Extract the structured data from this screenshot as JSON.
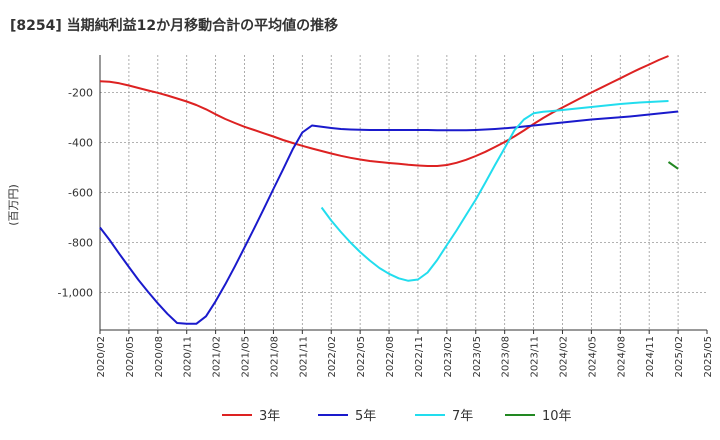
{
  "chart_data": {
    "type": "line",
    "title": "[8254]  当期純利益12か月移動合計の平均値の推移",
    "ylabel": "(百万円)",
    "xlabel": "",
    "ylim": [
      -1150,
      -50
    ],
    "yticks": [
      -200,
      -400,
      -600,
      -800,
      -1000
    ],
    "ytick_labels": [
      "-200",
      "-400",
      "-600",
      "-800",
      "-1,000"
    ],
    "xlim": [
      "2020-02",
      "2025-05"
    ],
    "x_tick_labels": [
      "2020/02",
      "2020/05",
      "2020/08",
      "2020/11",
      "2021/02",
      "2021/05",
      "2021/08",
      "2021/11",
      "2022/02",
      "2022/05",
      "2022/08",
      "2022/11",
      "2023/02",
      "2023/05",
      "2023/08",
      "2023/11",
      "2024/02",
      "2024/05",
      "2024/08",
      "2024/11",
      "2025/02",
      "2025/05"
    ],
    "grid": true,
    "legend_position": "bottom",
    "series": [
      {
        "name": "3年",
        "color": "#dd2222",
        "points": [
          [
            "2020-02",
            -155
          ],
          [
            "2020-03",
            -157
          ],
          [
            "2020-04",
            -163
          ],
          [
            "2020-05",
            -172
          ],
          [
            "2020-06",
            -182
          ],
          [
            "2020-07",
            -192
          ],
          [
            "2020-08",
            -201
          ],
          [
            "2020-09",
            -212
          ],
          [
            "2020-10",
            -224
          ],
          [
            "2020-11",
            -236
          ],
          [
            "2020-12",
            -250
          ],
          [
            "2021-01",
            -267
          ],
          [
            "2021-02",
            -287
          ],
          [
            "2021-03",
            -306
          ],
          [
            "2021-04",
            -322
          ],
          [
            "2021-05",
            -337
          ],
          [
            "2021-06",
            -350
          ],
          [
            "2021-07",
            -363
          ],
          [
            "2021-08",
            -376
          ],
          [
            "2021-09",
            -390
          ],
          [
            "2021-10",
            -402
          ],
          [
            "2021-11",
            -413
          ],
          [
            "2021-12",
            -424
          ],
          [
            "2022-01",
            -434
          ],
          [
            "2022-02",
            -444
          ],
          [
            "2022-03",
            -453
          ],
          [
            "2022-04",
            -461
          ],
          [
            "2022-05",
            -468
          ],
          [
            "2022-06",
            -474
          ],
          [
            "2022-07",
            -478
          ],
          [
            "2022-08",
            -482
          ],
          [
            "2022-09",
            -485
          ],
          [
            "2022-10",
            -489
          ],
          [
            "2022-11",
            -492
          ],
          [
            "2022-12",
            -494
          ],
          [
            "2023-01",
            -494
          ],
          [
            "2023-02",
            -490
          ],
          [
            "2023-03",
            -481
          ],
          [
            "2023-04",
            -469
          ],
          [
            "2023-05",
            -454
          ],
          [
            "2023-06",
            -437
          ],
          [
            "2023-07",
            -418
          ],
          [
            "2023-08",
            -398
          ],
          [
            "2023-09",
            -376
          ],
          [
            "2023-10",
            -352
          ],
          [
            "2023-11",
            -326
          ],
          [
            "2023-12",
            -302
          ],
          [
            "2024-01",
            -280
          ],
          [
            "2024-02",
            -260
          ],
          [
            "2024-03",
            -240
          ],
          [
            "2024-04",
            -220
          ],
          [
            "2024-05",
            -200
          ],
          [
            "2024-06",
            -181
          ],
          [
            "2024-07",
            -162
          ],
          [
            "2024-08",
            -143
          ],
          [
            "2024-09",
            -124
          ],
          [
            "2024-10",
            -105
          ],
          [
            "2024-11",
            -88
          ],
          [
            "2024-12",
            -70
          ],
          [
            "2025-01",
            -54
          ]
        ]
      },
      {
        "name": "5年",
        "color": "#1a1acc",
        "points": [
          [
            "2020-02",
            -740
          ],
          [
            "2020-03",
            -790
          ],
          [
            "2020-04",
            -845
          ],
          [
            "2020-05",
            -898
          ],
          [
            "2020-06",
            -950
          ],
          [
            "2020-07",
            -998
          ],
          [
            "2020-08",
            -1043
          ],
          [
            "2020-09",
            -1085
          ],
          [
            "2020-10",
            -1122
          ],
          [
            "2020-11",
            -1125
          ],
          [
            "2020-12",
            -1125
          ],
          [
            "2021-01",
            -1095
          ],
          [
            "2021-02",
            -1035
          ],
          [
            "2021-03",
            -967
          ],
          [
            "2021-04",
            -895
          ],
          [
            "2021-05",
            -820
          ],
          [
            "2021-06",
            -743
          ],
          [
            "2021-07",
            -665
          ],
          [
            "2021-08",
            -586
          ],
          [
            "2021-09",
            -507
          ],
          [
            "2021-10",
            -427
          ],
          [
            "2021-11",
            -360
          ],
          [
            "2021-12",
            -332
          ],
          [
            "2022-01",
            -337
          ],
          [
            "2022-02",
            -342
          ],
          [
            "2022-03",
            -346
          ],
          [
            "2022-04",
            -348
          ],
          [
            "2022-05",
            -349
          ],
          [
            "2022-06",
            -350
          ],
          [
            "2022-07",
            -350
          ],
          [
            "2022-08",
            -350
          ],
          [
            "2022-09",
            -350
          ],
          [
            "2022-10",
            -350
          ],
          [
            "2022-11",
            -350
          ],
          [
            "2022-12",
            -350
          ],
          [
            "2023-01",
            -351
          ],
          [
            "2023-02",
            -351
          ],
          [
            "2023-03",
            -351
          ],
          [
            "2023-04",
            -351
          ],
          [
            "2023-05",
            -350
          ],
          [
            "2023-06",
            -348
          ],
          [
            "2023-07",
            -346
          ],
          [
            "2023-08",
            -343
          ],
          [
            "2023-09",
            -340
          ],
          [
            "2023-10",
            -336
          ],
          [
            "2023-11",
            -332
          ],
          [
            "2023-12",
            -328
          ],
          [
            "2024-01",
            -324
          ],
          [
            "2024-02",
            -320
          ],
          [
            "2024-03",
            -316
          ],
          [
            "2024-04",
            -312
          ],
          [
            "2024-05",
            -308
          ],
          [
            "2024-06",
            -305
          ],
          [
            "2024-07",
            -302
          ],
          [
            "2024-08",
            -299
          ],
          [
            "2024-09",
            -296
          ],
          [
            "2024-10",
            -292
          ],
          [
            "2024-11",
            -288
          ],
          [
            "2024-12",
            -284
          ],
          [
            "2025-01",
            -280
          ],
          [
            "2025-02",
            -276
          ]
        ]
      },
      {
        "name": "7年",
        "color": "#22ddee",
        "points": [
          [
            "2022-01",
            -660
          ],
          [
            "2022-02",
            -712
          ],
          [
            "2022-03",
            -758
          ],
          [
            "2022-04",
            -800
          ],
          [
            "2022-05",
            -838
          ],
          [
            "2022-06",
            -872
          ],
          [
            "2022-07",
            -902
          ],
          [
            "2022-08",
            -925
          ],
          [
            "2022-09",
            -943
          ],
          [
            "2022-10",
            -953
          ],
          [
            "2022-11",
            -948
          ],
          [
            "2022-12",
            -920
          ],
          [
            "2023-01",
            -870
          ],
          [
            "2023-02",
            -810
          ],
          [
            "2023-03",
            -752
          ],
          [
            "2023-04",
            -690
          ],
          [
            "2023-05",
            -628
          ],
          [
            "2023-06",
            -560
          ],
          [
            "2023-07",
            -490
          ],
          [
            "2023-08",
            -422
          ],
          [
            "2023-09",
            -352
          ],
          [
            "2023-10",
            -308
          ],
          [
            "2023-11",
            -283
          ],
          [
            "2023-12",
            -277
          ],
          [
            "2024-01",
            -274
          ],
          [
            "2024-02",
            -270
          ],
          [
            "2024-03",
            -266
          ],
          [
            "2024-04",
            -262
          ],
          [
            "2024-05",
            -258
          ],
          [
            "2024-06",
            -254
          ],
          [
            "2024-07",
            -250
          ],
          [
            "2024-08",
            -246
          ],
          [
            "2024-09",
            -243
          ],
          [
            "2024-10",
            -240
          ],
          [
            "2024-11",
            -238
          ],
          [
            "2024-12",
            -236
          ],
          [
            "2025-01",
            -234
          ]
        ]
      },
      {
        "name": "10年",
        "color": "#228822",
        "points": [
          [
            "2025-01",
            -478
          ],
          [
            "2025-02",
            -505
          ]
        ]
      }
    ]
  }
}
